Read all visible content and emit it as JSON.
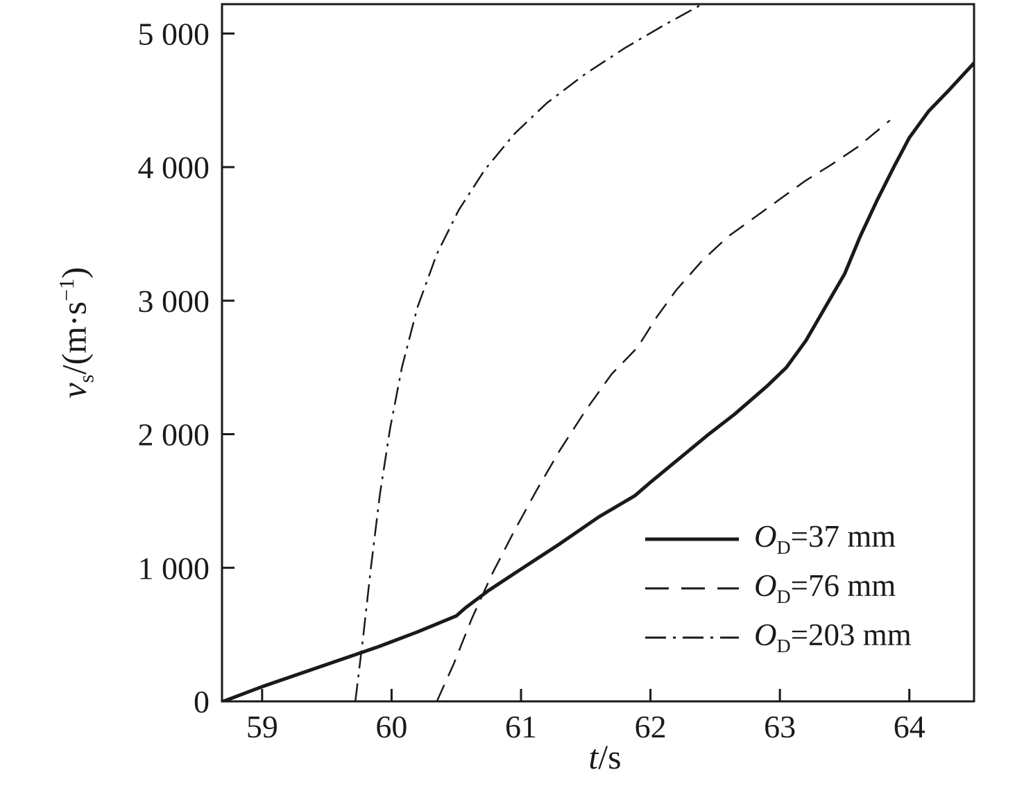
{
  "figure": {
    "background": "#ffffff",
    "line_color": "#1a1a1a"
  },
  "chart_data": {
    "type": "line",
    "title": "",
    "xlabel": {
      "var": "t",
      "rest": "/s"
    },
    "ylabel": {
      "var": "v",
      "sub": "s",
      "mid": "/(m·s",
      "sup": "−1",
      "end": ")"
    },
    "xlim": [
      58.69,
      64.5
    ],
    "ylim": [
      0,
      5220
    ],
    "grid": false,
    "legend_position": "lower right",
    "xticks": [
      {
        "v": 59,
        "label": "59"
      },
      {
        "v": 60,
        "label": "60"
      },
      {
        "v": 61,
        "label": "61"
      },
      {
        "v": 62,
        "label": "62"
      },
      {
        "v": 63,
        "label": "63"
      },
      {
        "v": 64,
        "label": "64"
      }
    ],
    "yticks": [
      {
        "v": 0,
        "label": "0"
      },
      {
        "v": 1000,
        "label": "1 000"
      },
      {
        "v": 2000,
        "label": "2 000"
      },
      {
        "v": 3000,
        "label": "3 000"
      },
      {
        "v": 4000,
        "label": "4 000"
      },
      {
        "v": 5000,
        "label": "5 000"
      }
    ],
    "series": [
      {
        "name": "OD=37 mm",
        "label": {
          "pre": "O",
          "sub": "D",
          "post": "=37 mm"
        },
        "line_style": "solid",
        "line_width": 5,
        "points": [
          [
            58.7,
            0
          ],
          [
            59.0,
            110
          ],
          [
            59.3,
            210
          ],
          [
            59.6,
            310
          ],
          [
            59.9,
            410
          ],
          [
            60.2,
            520
          ],
          [
            60.5,
            640
          ],
          [
            60.57,
            700
          ],
          [
            60.75,
            830
          ],
          [
            61.0,
            990
          ],
          [
            61.3,
            1180
          ],
          [
            61.6,
            1380
          ],
          [
            61.88,
            1540
          ],
          [
            62.0,
            1640
          ],
          [
            62.2,
            1800
          ],
          [
            62.45,
            2000
          ],
          [
            62.65,
            2150
          ],
          [
            62.9,
            2360
          ],
          [
            63.05,
            2500
          ],
          [
            63.2,
            2700
          ],
          [
            63.35,
            2950
          ],
          [
            63.5,
            3200
          ],
          [
            63.62,
            3480
          ],
          [
            63.75,
            3750
          ],
          [
            63.88,
            4000
          ],
          [
            64.0,
            4220
          ],
          [
            64.15,
            4420
          ],
          [
            64.3,
            4570
          ],
          [
            64.5,
            4780
          ]
        ]
      },
      {
        "name": "OD=76 mm",
        "label": {
          "pre": "O",
          "sub": "D",
          "post": "=76 mm"
        },
        "line_style": "dashed",
        "line_width": 2.5,
        "points": [
          [
            60.35,
            0
          ],
          [
            60.48,
            280
          ],
          [
            60.62,
            620
          ],
          [
            60.78,
            960
          ],
          [
            60.95,
            1280
          ],
          [
            61.12,
            1580
          ],
          [
            61.3,
            1880
          ],
          [
            61.5,
            2180
          ],
          [
            61.7,
            2450
          ],
          [
            61.9,
            2650
          ],
          [
            62.05,
            2880
          ],
          [
            62.2,
            3080
          ],
          [
            62.4,
            3300
          ],
          [
            62.6,
            3480
          ],
          [
            62.8,
            3620
          ],
          [
            63.0,
            3760
          ],
          [
            63.2,
            3900
          ],
          [
            63.4,
            4020
          ],
          [
            63.6,
            4150
          ],
          [
            63.85,
            4350
          ]
        ]
      },
      {
        "name": "OD=203 mm",
        "label": {
          "pre": "O",
          "sub": "D",
          "post": "=203 mm"
        },
        "line_style": "dashdot",
        "line_width": 2.5,
        "points": [
          [
            59.72,
            0
          ],
          [
            59.78,
            480
          ],
          [
            59.84,
            1000
          ],
          [
            59.91,
            1550
          ],
          [
            59.99,
            2050
          ],
          [
            60.08,
            2500
          ],
          [
            60.2,
            2950
          ],
          [
            60.35,
            3350
          ],
          [
            60.52,
            3680
          ],
          [
            60.72,
            3980
          ],
          [
            60.95,
            4250
          ],
          [
            61.2,
            4480
          ],
          [
            61.5,
            4700
          ],
          [
            61.8,
            4890
          ],
          [
            62.1,
            5060
          ],
          [
            62.4,
            5220
          ]
        ]
      }
    ]
  }
}
